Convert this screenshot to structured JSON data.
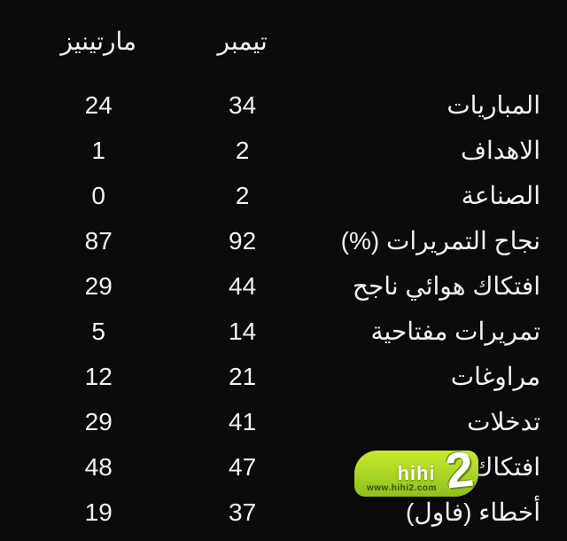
{
  "table": {
    "type": "table",
    "background_color": "#0b0b0b",
    "text_color": "#f2f2f2",
    "font_size_pt": 21,
    "columns": [
      {
        "key": "label",
        "header": "",
        "align": "right",
        "width_pct": 44
      },
      {
        "key": "timber",
        "header": "تيمبر",
        "align": "center",
        "width_pct": 28
      },
      {
        "key": "martinez",
        "header": "مارتينيز",
        "align": "center",
        "width_pct": 28
      }
    ],
    "rows": [
      {
        "label": "المباريات",
        "timber": "34",
        "martinez": "24"
      },
      {
        "label": "الاهداف",
        "timber": "2",
        "martinez": "1"
      },
      {
        "label": "الصناعة",
        "timber": "2",
        "martinez": "0"
      },
      {
        "label": "نجاح التمريرات (%)",
        "timber": "92",
        "martinez": "87"
      },
      {
        "label": "افتكاك هوائي ناجح",
        "timber": "44",
        "martinez": "29"
      },
      {
        "label": "تمريرات مفتاحية",
        "timber": "14",
        "martinez": "5"
      },
      {
        "label": "مراوغات",
        "timber": "21",
        "martinez": "12"
      },
      {
        "label": "تدخلات",
        "timber": "41",
        "martinez": "29"
      },
      {
        "label": "افتكاك كرة",
        "timber": "47",
        "martinez": "48"
      },
      {
        "label": "أخطاء (فاول)",
        "timber": "37",
        "martinez": "19"
      }
    ]
  },
  "watermark": {
    "brand_text": "hihi",
    "accent_glyph": "2",
    "sub_text": "www.hihi2.com",
    "bg_gradient_top": "#c8ea2b",
    "bg_gradient_bottom": "#8fbf1f",
    "text_color": "#ffffff"
  }
}
